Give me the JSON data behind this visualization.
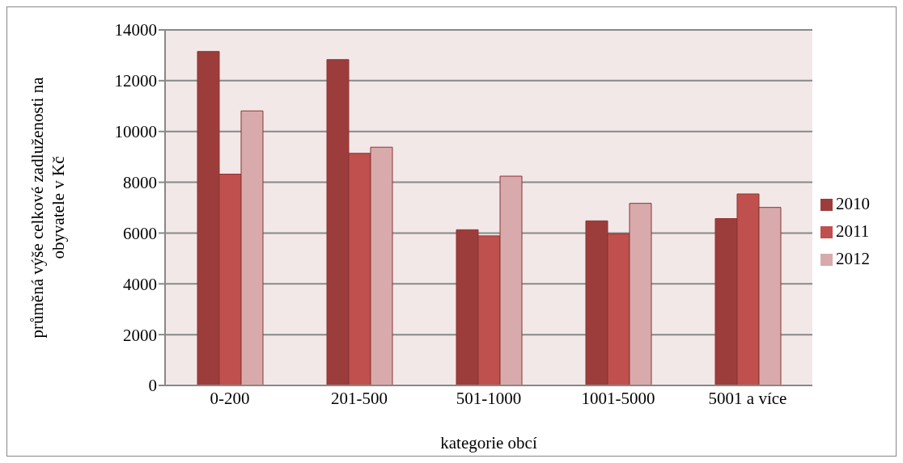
{
  "chart_data": {
    "type": "bar",
    "xlabel": "kategorie obcí",
    "ylabel": "průměná výše celkové zadluženosti na obyvatele v Kč",
    "categories": [
      "0-200",
      "201-500",
      "501-1000",
      "1001-5000",
      "5001 a více"
    ],
    "series": [
      {
        "name": "2010",
        "color": "#9c3d3c",
        "values": [
          13150,
          12830,
          6130,
          6480,
          6570
        ]
      },
      {
        "name": "2011",
        "color": "#c0504d",
        "values": [
          8320,
          9140,
          5890,
          5970,
          7540
        ]
      },
      {
        "name": "2012",
        "color": "#d9aaab",
        "values": [
          10810,
          9380,
          8240,
          7170,
          7010
        ]
      }
    ],
    "ylim": [
      0,
      14000
    ],
    "yticks": [
      0,
      2000,
      4000,
      6000,
      8000,
      10000,
      12000,
      14000
    ],
    "grid": "y",
    "legend": "right"
  }
}
